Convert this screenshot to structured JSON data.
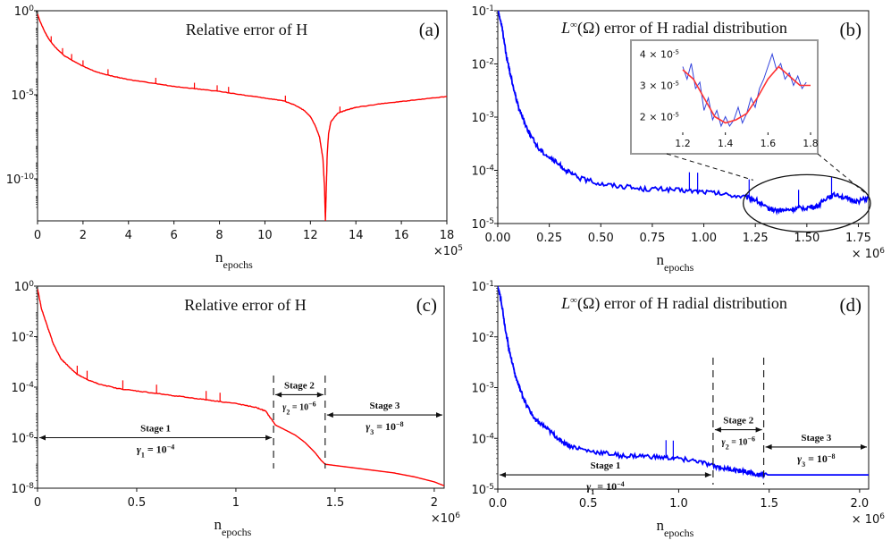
{
  "chart_data": [
    {
      "id": "a",
      "panel_label": "(a)",
      "type": "line",
      "title": "Relative error of H",
      "xlabel_main": "n",
      "xlabel_sub": "epochs",
      "x_multiplier": "×10",
      "x_multiplier_exp": "5",
      "xlim": [
        0,
        18
      ],
      "ylim_log10": [
        -12.5,
        0
      ],
      "xticks": [
        0,
        2,
        4,
        6,
        8,
        10,
        12,
        14,
        16,
        18
      ],
      "xtick_labels": [
        "0",
        "2",
        "4",
        "6",
        "8",
        "10",
        "12",
        "14",
        "16",
        "18"
      ],
      "yticks": [
        {
          "value": 0,
          "base": "10",
          "exp": "0"
        },
        {
          "value": -5,
          "base": "10",
          "exp": "-5"
        },
        {
          "value": -10,
          "base": "10",
          "exp": "-10"
        }
      ],
      "color": "#ff0000",
      "series": [
        {
          "name": "relative error",
          "x": [
            0,
            0.1,
            0.3,
            0.5,
            0.8,
            1.2,
            1.6,
            2.0,
            2.5,
            3.0,
            3.5,
            4.0,
            5.0,
            6.0,
            7.0,
            8.0,
            9.0,
            10.0,
            10.8,
            11.3,
            11.7,
            12.0,
            12.2,
            12.4,
            12.55,
            12.62,
            12.66,
            12.7,
            12.74,
            12.8,
            12.9,
            13.2,
            13.6,
            14.0,
            15.0,
            16.0,
            17.0,
            18.0
          ],
          "log10": [
            -0.2,
            -0.6,
            -1.2,
            -1.7,
            -2.2,
            -2.7,
            -3.0,
            -3.3,
            -3.6,
            -3.8,
            -3.95,
            -4.1,
            -4.3,
            -4.5,
            -4.65,
            -4.8,
            -5.0,
            -5.2,
            -5.35,
            -5.6,
            -5.9,
            -6.3,
            -6.8,
            -7.5,
            -8.8,
            -10.5,
            -12.5,
            -10.5,
            -8.5,
            -7.3,
            -6.6,
            -6.1,
            -5.9,
            -5.75,
            -5.55,
            -5.4,
            -5.25,
            -5.1
          ]
        }
      ],
      "spikes_x": [
        0.6,
        1.1,
        1.5,
        2.0,
        3.1,
        5.2,
        6.9,
        7.9,
        8.4,
        10.9,
        13.3
      ]
    },
    {
      "id": "b",
      "panel_label": "(b)",
      "type": "line",
      "title_prefix": "L",
      "title_sup": "∞",
      "title_rest": "(Ω) error of H radial distribution",
      "xlabel_main": "n",
      "xlabel_sub": "epochs",
      "x_multiplier": "× 10",
      "x_multiplier_exp": "6",
      "xlim": [
        0,
        1.8
      ],
      "ylim_log10": [
        -5,
        -1
      ],
      "xticks": [
        0,
        0.25,
        0.5,
        0.75,
        1.0,
        1.25,
        1.5,
        1.75
      ],
      "xtick_labels": [
        "0.00",
        "0.25",
        "0.50",
        "0.75",
        "1.00",
        "1.25",
        "1.50",
        "1.75"
      ],
      "yticks": [
        {
          "value": -1,
          "base": "10",
          "exp": "-1"
        },
        {
          "value": -2,
          "base": "10",
          "exp": "-2"
        },
        {
          "value": -3,
          "base": "10",
          "exp": "-3"
        },
        {
          "value": -4,
          "base": "10",
          "exp": "-4"
        },
        {
          "value": -5,
          "base": "10",
          "exp": "-5"
        }
      ],
      "color": "#0000ff",
      "series": [
        {
          "name": "L-infinity error",
          "x": [
            0.0,
            0.02,
            0.04,
            0.06,
            0.08,
            0.1,
            0.13,
            0.16,
            0.2,
            0.25,
            0.3,
            0.35,
            0.4,
            0.5,
            0.6,
            0.7,
            0.8,
            0.9,
            1.0,
            1.1,
            1.2,
            1.25,
            1.3,
            1.35,
            1.4,
            1.45,
            1.5,
            1.55,
            1.6,
            1.65,
            1.7,
            1.75,
            1.8
          ],
          "log10": [
            -1.0,
            -1.3,
            -1.8,
            -2.2,
            -2.5,
            -2.8,
            -3.1,
            -3.35,
            -3.6,
            -3.75,
            -3.9,
            -4.05,
            -4.15,
            -4.25,
            -4.3,
            -4.35,
            -4.35,
            -4.38,
            -4.4,
            -4.45,
            -4.5,
            -4.55,
            -4.7,
            -4.75,
            -4.75,
            -4.72,
            -4.7,
            -4.68,
            -4.5,
            -4.45,
            -4.55,
            -4.58,
            -4.52
          ]
        }
      ],
      "spikes_x": [
        0.93,
        0.97,
        1.22,
        1.46,
        1.62
      ],
      "inset": {
        "xlim": [
          1.2,
          1.8
        ],
        "xticks": [
          1.2,
          1.4,
          1.6,
          1.8
        ],
        "xtick_labels": [
          "1.2",
          "1.4",
          "1.6",
          "1.8"
        ],
        "ylim": [
          1.5,
          4.3
        ],
        "ytick_labels": [
          {
            "value": 4,
            "text": "4 × 10",
            "exp": "-5"
          },
          {
            "value": 3,
            "text": "3 × 10",
            "exp": "-5"
          },
          {
            "value": 2,
            "text": "2 × 10",
            "exp": "-5"
          }
        ],
        "raw_color": "#3344dd",
        "fit_color": "#ff3333",
        "raw_x": [
          1.2,
          1.22,
          1.24,
          1.26,
          1.28,
          1.3,
          1.32,
          1.34,
          1.36,
          1.38,
          1.4,
          1.42,
          1.44,
          1.46,
          1.48,
          1.5,
          1.52,
          1.54,
          1.56,
          1.58,
          1.6,
          1.62,
          1.64,
          1.66,
          1.68,
          1.7,
          1.72,
          1.74,
          1.76,
          1.78
        ],
        "raw_y": [
          3.6,
          3.2,
          3.7,
          2.9,
          3.1,
          2.2,
          2.6,
          1.9,
          2.2,
          1.7,
          2.0,
          1.7,
          1.9,
          2.3,
          1.8,
          2.1,
          2.6,
          2.3,
          2.9,
          3.2,
          3.6,
          4.0,
          3.5,
          3.7,
          3.2,
          3.4,
          3.0,
          3.3,
          2.9,
          3.1
        ],
        "fit_x": [
          1.2,
          1.25,
          1.3,
          1.35,
          1.4,
          1.45,
          1.5,
          1.55,
          1.6,
          1.65,
          1.7,
          1.75,
          1.8
        ],
        "fit_y": [
          3.5,
          3.2,
          2.6,
          2.0,
          1.8,
          1.9,
          2.1,
          2.6,
          3.2,
          3.6,
          3.3,
          3.0,
          3.0
        ]
      }
    },
    {
      "id": "c",
      "panel_label": "(c)",
      "type": "line",
      "title": "Relative error of H",
      "xlabel_main": "n",
      "xlabel_sub": "epochs",
      "x_multiplier": "×10",
      "x_multiplier_exp": "6",
      "xlim": [
        0,
        2.05
      ],
      "ylim_log10": [
        -8,
        0
      ],
      "xticks": [
        0,
        0.5,
        1.0,
        1.5,
        2.0
      ],
      "xtick_labels": [
        "0",
        "0.5",
        "1",
        "1.5",
        "2"
      ],
      "yticks": [
        {
          "value": 0,
          "base": "10",
          "exp": "0"
        },
        {
          "value": -2,
          "base": "10",
          "exp": "-2"
        },
        {
          "value": -4,
          "base": "10",
          "exp": "-4"
        },
        {
          "value": -6,
          "base": "10",
          "exp": "-6"
        },
        {
          "value": -8,
          "base": "10",
          "exp": "-8"
        }
      ],
      "color": "#ff0000",
      "series": [
        {
          "name": "relative error",
          "x": [
            0.0,
            0.02,
            0.05,
            0.08,
            0.12,
            0.16,
            0.2,
            0.25,
            0.3,
            0.4,
            0.5,
            0.6,
            0.7,
            0.8,
            0.9,
            1.0,
            1.1,
            1.15,
            1.2,
            1.25,
            1.3,
            1.35,
            1.4,
            1.43,
            1.45,
            1.5,
            1.6,
            1.7,
            1.8,
            1.9,
            2.0,
            2.05
          ],
          "log10": [
            -0.1,
            -0.9,
            -1.6,
            -2.3,
            -2.9,
            -3.2,
            -3.5,
            -3.7,
            -3.85,
            -4.05,
            -4.15,
            -4.25,
            -4.35,
            -4.45,
            -4.55,
            -4.65,
            -4.8,
            -4.95,
            -5.5,
            -5.7,
            -5.9,
            -6.2,
            -6.6,
            -6.9,
            -7.05,
            -7.1,
            -7.2,
            -7.3,
            -7.4,
            -7.55,
            -7.75,
            -7.9
          ]
        }
      ],
      "spikes_x": [
        0.2,
        0.25,
        0.43,
        0.6,
        0.85,
        0.92
      ],
      "stage_boundaries": [
        1.19,
        1.45
      ],
      "stages": [
        {
          "label": "Stage 1",
          "gamma": "γ",
          "gamma_sub": "1",
          "gamma_eq": " = 10",
          "gamma_exp": "−4",
          "x0": 0,
          "x1": 1.19,
          "arrow_y": -6.0
        },
        {
          "label": "Stage 2",
          "gamma": "γ",
          "gamma_sub": "2",
          "gamma_eq": " = 10",
          "gamma_exp": "−6",
          "x0": 1.19,
          "x1": 1.45,
          "arrow_y": -4.3
        },
        {
          "label": "Stage 3",
          "gamma": "γ",
          "gamma_sub": "3",
          "gamma_eq": " = 10",
          "gamma_exp": "−8",
          "x0": 1.45,
          "x1": 2.05,
          "arrow_y": -5.1
        }
      ]
    },
    {
      "id": "d",
      "panel_label": "(d)",
      "type": "line",
      "title_prefix": "L",
      "title_sup": "∞",
      "title_rest": "(Ω) error of H radial distribution",
      "xlabel_main": "n",
      "xlabel_sub": "epochs",
      "x_multiplier": "× 10",
      "x_multiplier_exp": "6",
      "xlim": [
        0,
        2.05
      ],
      "ylim_log10": [
        -5,
        -1
      ],
      "xticks": [
        0,
        0.5,
        1.0,
        1.5,
        2.0
      ],
      "xtick_labels": [
        "0.0",
        "0.5",
        "1.0",
        "1.5",
        "2.0"
      ],
      "yticks": [
        {
          "value": -1,
          "base": "10",
          "exp": "-1"
        },
        {
          "value": -2,
          "base": "10",
          "exp": "-2"
        },
        {
          "value": -3,
          "base": "10",
          "exp": "-3"
        },
        {
          "value": -4,
          "base": "10",
          "exp": "-4"
        },
        {
          "value": -5,
          "base": "10",
          "exp": "-5"
        }
      ],
      "color": "#0000ff",
      "series": [
        {
          "name": "L-infinity error",
          "x": [
            0.0,
            0.02,
            0.04,
            0.06,
            0.08,
            0.1,
            0.13,
            0.16,
            0.2,
            0.25,
            0.3,
            0.35,
            0.4,
            0.5,
            0.6,
            0.7,
            0.8,
            0.9,
            1.0,
            1.1,
            1.19,
            1.25,
            1.3,
            1.35,
            1.4,
            1.45,
            1.47,
            1.55,
            1.7,
            1.85,
            2.05
          ],
          "log10": [
            -1.0,
            -1.3,
            -1.8,
            -2.2,
            -2.5,
            -2.8,
            -3.1,
            -3.35,
            -3.6,
            -3.75,
            -3.9,
            -4.05,
            -4.15,
            -4.25,
            -4.3,
            -4.35,
            -4.35,
            -4.38,
            -4.4,
            -4.45,
            -4.55,
            -4.58,
            -4.62,
            -4.65,
            -4.68,
            -4.71,
            -4.72,
            -4.72,
            -4.72,
            -4.72,
            -4.72
          ]
        }
      ],
      "spikes_x": [
        0.93,
        0.97
      ],
      "stage_boundaries": [
        1.19,
        1.47
      ],
      "stages": [
        {
          "label": "Stage 1",
          "gamma": "γ",
          "gamma_sub": "1",
          "gamma_eq": " = 10",
          "gamma_exp": "−4",
          "x0": 0,
          "x1": 1.19,
          "arrow_y": -4.72
        },
        {
          "label": "Stage 2",
          "gamma": "γ",
          "gamma_sub": "2",
          "gamma_eq": " = 10",
          "gamma_exp": "−6",
          "x0": 1.19,
          "x1": 1.47,
          "arrow_y": -3.83
        },
        {
          "label": "Stage 3",
          "gamma": "γ",
          "gamma_sub": "3",
          "gamma_eq": " = 10",
          "gamma_exp": "−8",
          "x0": 1.47,
          "x1": 2.05,
          "arrow_y": -4.17
        }
      ]
    }
  ]
}
